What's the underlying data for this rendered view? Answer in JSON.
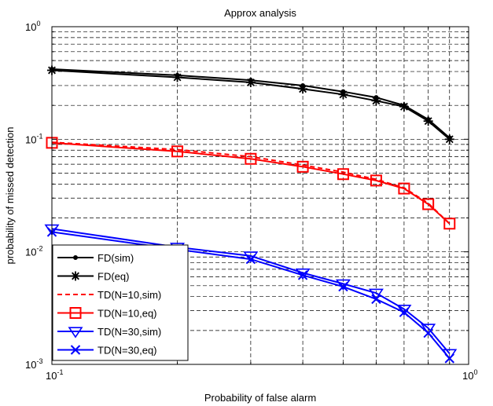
{
  "chart_data": {
    "type": "line",
    "title": "Approx analysis",
    "xlabel": "Probability of false alarm",
    "ylabel": "probability of missed detection",
    "xscale": "log",
    "yscale": "log",
    "xlim": [
      0.1,
      1
    ],
    "ylim": [
      0.001,
      1
    ],
    "grid": true,
    "legend_position": "bottom-left",
    "x_ticks": [
      {
        "base": "10",
        "exp": "-1"
      },
      {
        "base": "10",
        "exp": "0"
      }
    ],
    "y_ticks": [
      {
        "base": "10",
        "exp": "-3"
      },
      {
        "base": "10",
        "exp": "-2"
      },
      {
        "base": "10",
        "exp": "-1"
      },
      {
        "base": "10",
        "exp": "0"
      }
    ],
    "series": [
      {
        "name": "FD(sim)",
        "color": "#000000",
        "dash": "solid",
        "marker": "dot",
        "x": [
          0.1,
          0.2,
          0.3,
          0.4,
          0.5,
          0.6,
          0.7,
          0.8,
          0.9
        ],
        "y": [
          0.42,
          0.37,
          0.335,
          0.3,
          0.265,
          0.235,
          0.2,
          0.15,
          0.103
        ]
      },
      {
        "name": "FD(eq)",
        "color": "#000000",
        "dash": "solid",
        "marker": "asterisk",
        "x": [
          0.1,
          0.2,
          0.3,
          0.4,
          0.5,
          0.6,
          0.7,
          0.8,
          0.9
        ],
        "y": [
          0.41,
          0.355,
          0.32,
          0.28,
          0.25,
          0.22,
          0.195,
          0.145,
          0.1
        ]
      },
      {
        "name": "TD(N=10,sim)",
        "color": "#ff0000",
        "dash": "dashed",
        "marker": "none",
        "x": [
          0.1,
          0.2,
          0.3,
          0.4,
          0.5,
          0.6,
          0.7,
          0.8,
          0.9
        ],
        "y": [
          0.094,
          0.081,
          0.07,
          0.059,
          0.051,
          0.044,
          0.037,
          0.027,
          0.0178
        ]
      },
      {
        "name": "TD(N=10,eq)",
        "color": "#ff0000",
        "dash": "solid",
        "marker": "square",
        "x": [
          0.1,
          0.2,
          0.3,
          0.4,
          0.5,
          0.6,
          0.7,
          0.8,
          0.9
        ],
        "y": [
          0.093,
          0.078,
          0.067,
          0.057,
          0.049,
          0.043,
          0.0365,
          0.0265,
          0.0178
        ]
      },
      {
        "name": "TD(N=30,sim)",
        "color": "#0000ff",
        "dash": "solid",
        "marker": "triangle-down",
        "x": [
          0.1,
          0.2,
          0.3,
          0.4,
          0.5,
          0.6,
          0.7,
          0.8,
          0.9
        ],
        "y": [
          0.016,
          0.011,
          0.0092,
          0.0065,
          0.0052,
          0.0043,
          0.0031,
          0.0021,
          0.00125
        ]
      },
      {
        "name": "TD(N=30,eq)",
        "color": "#0000ff",
        "dash": "solid",
        "marker": "x",
        "x": [
          0.1,
          0.2,
          0.3,
          0.4,
          0.5,
          0.6,
          0.7,
          0.8,
          0.9
        ],
        "y": [
          0.015,
          0.0105,
          0.0086,
          0.0062,
          0.0049,
          0.0038,
          0.0029,
          0.0019,
          0.00113
        ]
      }
    ]
  }
}
